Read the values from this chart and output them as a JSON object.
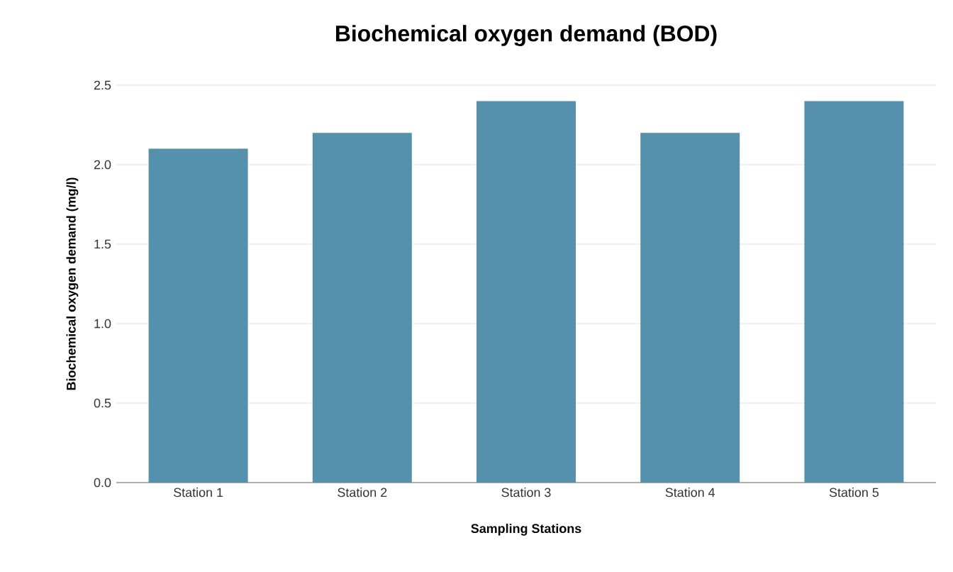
{
  "chart_data": {
    "type": "bar",
    "title": "Biochemical oxygen demand (BOD)",
    "xlabel": "Sampling Stations",
    "ylabel": "Biochemical oxygen demand (mg/l)",
    "categories": [
      "Station 1",
      "Station 2",
      "Station 3",
      "Station 4",
      "Station 5"
    ],
    "values": [
      2.1,
      2.2,
      2.4,
      2.2,
      2.4
    ],
    "color": "#5591ad",
    "ylim": [
      0,
      2.5
    ],
    "yticks": [
      {
        "value": 0,
        "label": "0.0"
      },
      0.5,
      {
        "value": 1,
        "label": "1.0"
      },
      1.5,
      {
        "value": 2,
        "label": "2.0"
      },
      2.5
    ],
    "grid": "y"
  }
}
